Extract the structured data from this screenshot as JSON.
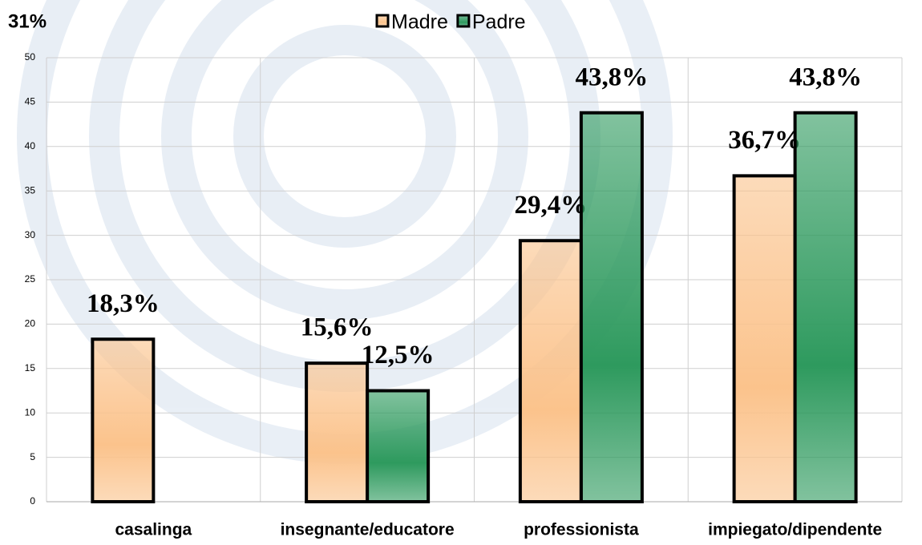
{
  "chart_data": {
    "type": "bar",
    "annotation": "31%",
    "categories": [
      "casalinga",
      "insegnante/educatore",
      "professionista",
      "impiegato/dipendente"
    ],
    "series": [
      {
        "name": "Madre",
        "color": "#fbc38c",
        "values": [
          18.3,
          15.6,
          29.4,
          36.7
        ],
        "value_labels": [
          "18,3%",
          "15,6%",
          "29,4%",
          "36,7%"
        ]
      },
      {
        "name": "Padre",
        "color": "#2e9a5e",
        "values": [
          null,
          12.5,
          43.8,
          43.8
        ],
        "value_labels": [
          null,
          "12,5%",
          "43,8%",
          "43,8%"
        ]
      }
    ],
    "ylim": [
      0,
      50
    ],
    "yticks": [
      0,
      5,
      10,
      15,
      20,
      25,
      30,
      35,
      40,
      45,
      50
    ],
    "grid": true
  }
}
